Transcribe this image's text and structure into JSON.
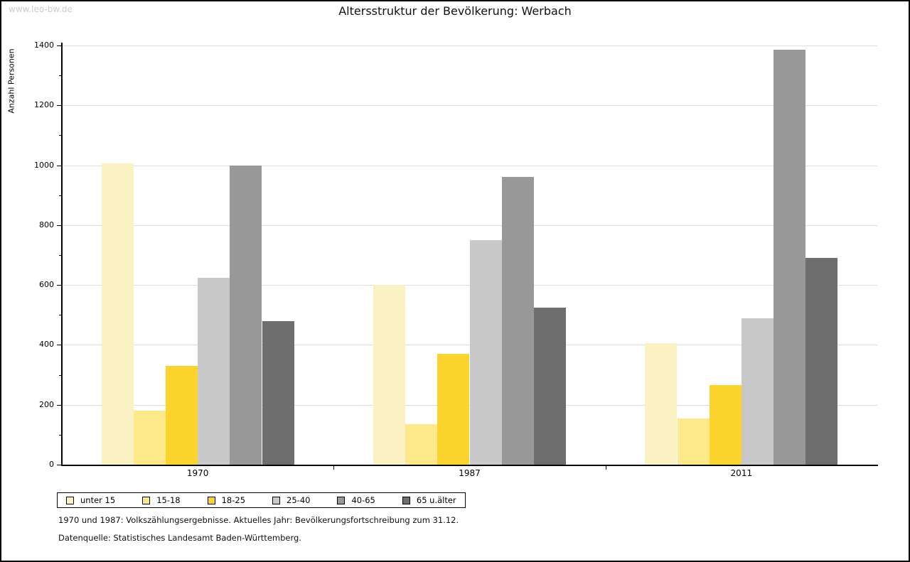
{
  "page": {
    "watermark": "www.leo-bw.de",
    "title": "Altersstruktur der Bevölkerung: Werbach"
  },
  "chart_data": {
    "type": "bar",
    "title": "Altersstruktur der Bevölkerung: Werbach",
    "xlabel": "",
    "ylabel": "Anzahl Personen",
    "categories": [
      "1970",
      "1987",
      "2011"
    ],
    "series": [
      {
        "name": "unter 15",
        "color": "#FBF2C4",
        "values": [
          1005,
          600,
          405
        ]
      },
      {
        "name": "15-18",
        "color": "#FDE88A",
        "values": [
          180,
          135,
          155
        ]
      },
      {
        "name": "18-25",
        "color": "#FCD42D",
        "values": [
          330,
          370,
          265
        ]
      },
      {
        "name": "25-40",
        "color": "#C8C8C8",
        "values": [
          625,
          750,
          490
        ]
      },
      {
        "name": "40-65",
        "color": "#989898",
        "values": [
          1000,
          960,
          1385
        ]
      },
      {
        "name": "65 u.älter",
        "color": "#6E6E6E",
        "values": [
          480,
          525,
          690
        ]
      }
    ],
    "ylim": [
      0,
      1400
    ],
    "yticks": [
      0,
      200,
      400,
      600,
      800,
      1000,
      1200,
      1400
    ],
    "minor_ytick_step": 100,
    "grid": true,
    "gridline_color": "#dddddd",
    "legend_position": "bottom-left"
  },
  "footer": {
    "line1": "1970 und 1987: Volkszählungsergebnisse. Aktuelles Jahr: Bevölkerungsfortschreibung zum 31.12.",
    "line2": "Datenquelle: Statistisches Landesamt Baden-Württemberg."
  }
}
